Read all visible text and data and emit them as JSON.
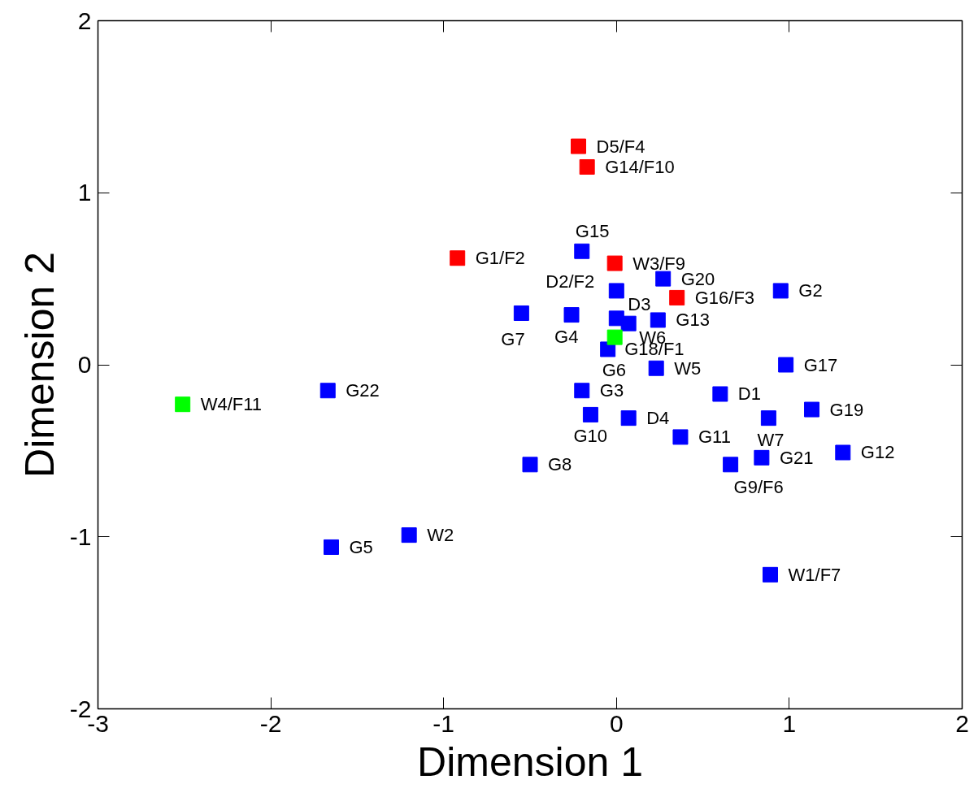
{
  "chart_data": {
    "type": "scatter",
    "xlabel": "Dimension 1",
    "ylabel": "Dimension 2",
    "xlim": [
      -3,
      2
    ],
    "ylim": [
      -2,
      2
    ],
    "xticks": [
      -3,
      -2,
      -1,
      0,
      1,
      2
    ],
    "yticks": [
      -2,
      -1,
      0,
      1,
      2
    ],
    "grid": false,
    "marker": "square",
    "series": [
      {
        "color": "#0000ff",
        "x": [
          -0.2,
          0.27,
          0.0,
          0.95,
          -0.55,
          -0.26,
          0.0,
          0.07,
          0.24,
          -0.05,
          0.23,
          0.98,
          -0.2,
          -1.67,
          0.6,
          -0.15,
          0.07,
          1.13,
          0.88,
          0.37,
          1.31,
          0.84,
          0.66,
          -0.5,
          -1.2,
          -1.65,
          0.89
        ],
        "values": [
          0.66,
          0.5,
          0.43,
          0.43,
          0.3,
          0.29,
          0.27,
          0.24,
          0.26,
          0.09,
          -0.02,
          0.0,
          -0.15,
          -0.15,
          -0.17,
          -0.29,
          -0.31,
          -0.26,
          -0.31,
          -0.42,
          -0.51,
          -0.54,
          -0.58,
          -0.58,
          -0.99,
          -1.06,
          -1.22
        ]
      },
      {
        "color": "#ff0000",
        "x": [
          -0.22,
          -0.17,
          -0.92,
          -0.01,
          0.35
        ],
        "values": [
          1.27,
          1.15,
          0.62,
          0.59,
          0.39
        ]
      },
      {
        "color": "#00ff00",
        "x": [
          -2.51,
          -0.01
        ],
        "values": [
          -0.23,
          0.16
        ]
      }
    ],
    "annotations": [
      {
        "text": "D5/F4",
        "x": -0.22,
        "y": 1.27
      },
      {
        "text": "G14/F10",
        "x": -0.17,
        "y": 1.15
      },
      {
        "text": "G1/F2",
        "x": -0.92,
        "y": 0.62
      },
      {
        "text": "W3/F9",
        "x": -0.01,
        "y": 0.59
      },
      {
        "text": "G16/F3",
        "x": 0.35,
        "y": 0.39
      },
      {
        "text": "G15",
        "x": -0.2,
        "y": 0.66
      },
      {
        "text": "D2/F2",
        "x": 0.0,
        "y": 0.43
      },
      {
        "text": "G20",
        "x": 0.27,
        "y": 0.5
      },
      {
        "text": "G2",
        "x": 0.95,
        "y": 0.43
      },
      {
        "text": "G7",
        "x": -0.55,
        "y": 0.3
      },
      {
        "text": "G4",
        "x": -0.26,
        "y": 0.29
      },
      {
        "text": "D3",
        "x": 0.0,
        "y": 0.27
      },
      {
        "text": "G13",
        "x": 0.24,
        "y": 0.26
      },
      {
        "text": "W6",
        "x": -0.01,
        "y": 0.16
      },
      {
        "text": "G18/F1",
        "x": 0.07,
        "y": 0.24
      },
      {
        "text": "G6",
        "x": -0.05,
        "y": 0.09
      },
      {
        "text": "W5",
        "x": 0.23,
        "y": -0.02
      },
      {
        "text": "G17",
        "x": 0.98,
        "y": 0.0
      },
      {
        "text": "G3",
        "x": -0.2,
        "y": -0.15
      },
      {
        "text": "G22",
        "x": -1.67,
        "y": -0.15
      },
      {
        "text": "D1",
        "x": 0.6,
        "y": -0.17
      },
      {
        "text": "G10",
        "x": -0.15,
        "y": -0.29
      },
      {
        "text": "D4",
        "x": 0.07,
        "y": -0.31
      },
      {
        "text": "G19",
        "x": 1.13,
        "y": -0.26
      },
      {
        "text": "W7",
        "x": 0.88,
        "y": -0.31
      },
      {
        "text": "G11",
        "x": 0.37,
        "y": -0.42
      },
      {
        "text": "G12",
        "x": 1.31,
        "y": -0.51
      },
      {
        "text": "G21",
        "x": 0.84,
        "y": -0.54
      },
      {
        "text": "G9/F6",
        "x": 0.66,
        "y": -0.58
      },
      {
        "text": "G8",
        "x": -0.5,
        "y": -0.58
      },
      {
        "text": "W2",
        "x": -1.2,
        "y": -0.99
      },
      {
        "text": "G5",
        "x": -1.65,
        "y": -1.06
      },
      {
        "text": "W1/F7",
        "x": 0.89,
        "y": -1.22
      },
      {
        "text": "W4/F11",
        "x": -2.51,
        "y": -0.23
      }
    ]
  }
}
